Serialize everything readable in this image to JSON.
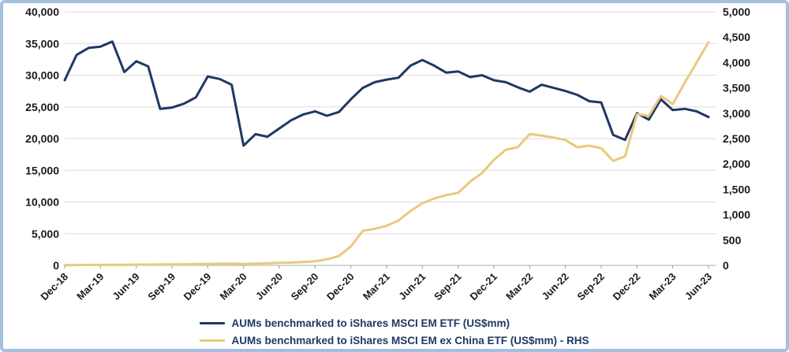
{
  "colors": {
    "border": "#A3C0E0",
    "background": "#FFFFFF",
    "grid": "#DBDBDB",
    "axis_line": "#BFBFBF",
    "tick": "#9A9A9A",
    "axis_text": "#1A1A22",
    "legend_text": "#1F3864",
    "navy_line": "#1F3864",
    "gold_line": "#E9C97D"
  },
  "chart_data": {
    "type": "line",
    "title": "",
    "grid": true,
    "legend_position": "bottom-center",
    "x_tick_labels": [
      "Dec-18",
      "Mar-19",
      "Jun-19",
      "Sep-19",
      "Dec-19",
      "Mar-20",
      "Jun-20",
      "Sep-20",
      "Dec-20",
      "Mar-21",
      "Jun-21",
      "Sep-21",
      "Dec-21",
      "Mar-22",
      "Jun-22",
      "Sep-22",
      "Dec-22",
      "Mar-23",
      "Jun-23"
    ],
    "x_monthly": [
      "Dec-18",
      "Jan-19",
      "Feb-19",
      "Mar-19",
      "Apr-19",
      "May-19",
      "Jun-19",
      "Jul-19",
      "Aug-19",
      "Sep-19",
      "Oct-19",
      "Nov-19",
      "Dec-19",
      "Jan-20",
      "Feb-20",
      "Mar-20",
      "Apr-20",
      "May-20",
      "Jun-20",
      "Jul-20",
      "Aug-20",
      "Sep-20",
      "Oct-20",
      "Nov-20",
      "Dec-20",
      "Jan-21",
      "Feb-21",
      "Mar-21",
      "Apr-21",
      "May-21",
      "Jun-21",
      "Jul-21",
      "Aug-21",
      "Sep-21",
      "Oct-21",
      "Nov-21",
      "Dec-21",
      "Jan-22",
      "Feb-22",
      "Mar-22",
      "Apr-22",
      "May-22",
      "Jun-22",
      "Jul-22",
      "Aug-22",
      "Sep-22",
      "Oct-22",
      "Nov-22",
      "Dec-22",
      "Jan-23",
      "Feb-23",
      "Mar-23",
      "Apr-23",
      "May-23",
      "Jun-23"
    ],
    "left_axis": {
      "min": 0,
      "max": 40000,
      "ticks": [
        "40,000",
        "35,000",
        "30,000",
        "25,000",
        "20,000",
        "15,000",
        "10,000",
        "5,000",
        "0"
      ]
    },
    "right_axis": {
      "min": 0,
      "max": 5000,
      "ticks": [
        "5,000",
        "4,500",
        "4,000",
        "3,500",
        "3,000",
        "2,500",
        "2,000",
        "1,500",
        "1,000",
        "500",
        "0"
      ]
    },
    "series": [
      {
        "name": "AUMs benchmarked to iShares MSCI EM ETF (US$mm)",
        "axis": "left",
        "color": "#1F3864",
        "values": [
          29200,
          33200,
          34300,
          34500,
          35300,
          30500,
          32200,
          31400,
          24700,
          24900,
          25500,
          26500,
          29800,
          29400,
          28500,
          18900,
          20700,
          20300,
          21600,
          22900,
          23800,
          24300,
          23600,
          24200,
          26200,
          28000,
          28900,
          29300,
          29600,
          31500,
          32400,
          31500,
          30400,
          30600,
          29700,
          30000,
          29200,
          28900,
          28100,
          27400,
          28500,
          28000,
          27500,
          26900,
          25900,
          25700,
          20600,
          19800,
          24000,
          23000,
          26200,
          24500,
          24700,
          24300,
          23400
        ]
      },
      {
        "name": "AUMs benchmarked to iShares MSCI EM ex China ETF (US$mm) - RHS",
        "axis": "right",
        "color": "#E9C97D",
        "values": [
          5,
          8,
          10,
          10,
          12,
          12,
          15,
          15,
          18,
          20,
          22,
          25,
          30,
          32,
          35,
          30,
          35,
          40,
          50,
          55,
          65,
          80,
          120,
          185,
          375,
          680,
          720,
          780,
          885,
          1070,
          1225,
          1320,
          1385,
          1430,
          1650,
          1820,
          2080,
          2280,
          2330,
          2590,
          2560,
          2520,
          2470,
          2330,
          2360,
          2310,
          2060,
          2150,
          2980,
          2950,
          3340,
          3180,
          3600,
          4000,
          4400
        ]
      }
    ]
  }
}
